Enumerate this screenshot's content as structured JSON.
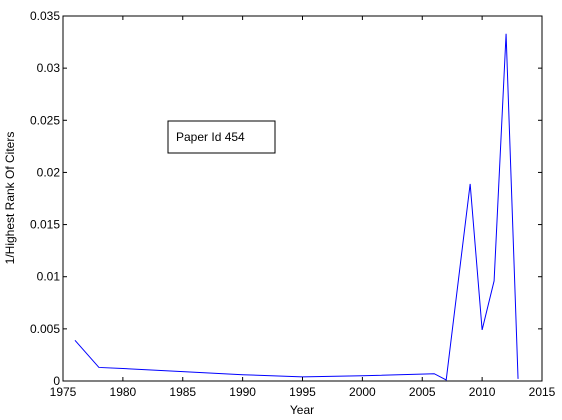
{
  "chart_data": {
    "type": "line",
    "title": "",
    "xlabel": "Year",
    "ylabel": "1/Highest Rank Of Citers",
    "xlim": [
      1975,
      2015
    ],
    "ylim": [
      0,
      0.035
    ],
    "xticks": [
      1975,
      1980,
      1985,
      1990,
      1995,
      2000,
      2005,
      2010,
      2015
    ],
    "yticks": [
      0,
      0.005,
      0.01,
      0.015,
      0.02,
      0.025,
      0.03,
      0.035
    ],
    "ytick_labels": [
      "0",
      "0.005",
      "0.01",
      "0.015",
      "0.02",
      "0.025",
      "0.03",
      "0.035"
    ],
    "grid": false,
    "annotation": "Paper Id 454",
    "series": [
      {
        "color": "#0000ff",
        "x": [
          1976,
          1978,
          1980,
          1985,
          1990,
          1995,
          2000,
          2006,
          2007,
          2009,
          2010,
          2011,
          2012,
          2013
        ],
        "y": [
          0.0039,
          0.0013,
          0.0012,
          0.0009,
          0.0006,
          0.0004,
          0.0005,
          0.0007,
          0.0001,
          0.0189,
          0.0049,
          0.0096,
          0.0333,
          0.0002
        ]
      }
    ]
  }
}
